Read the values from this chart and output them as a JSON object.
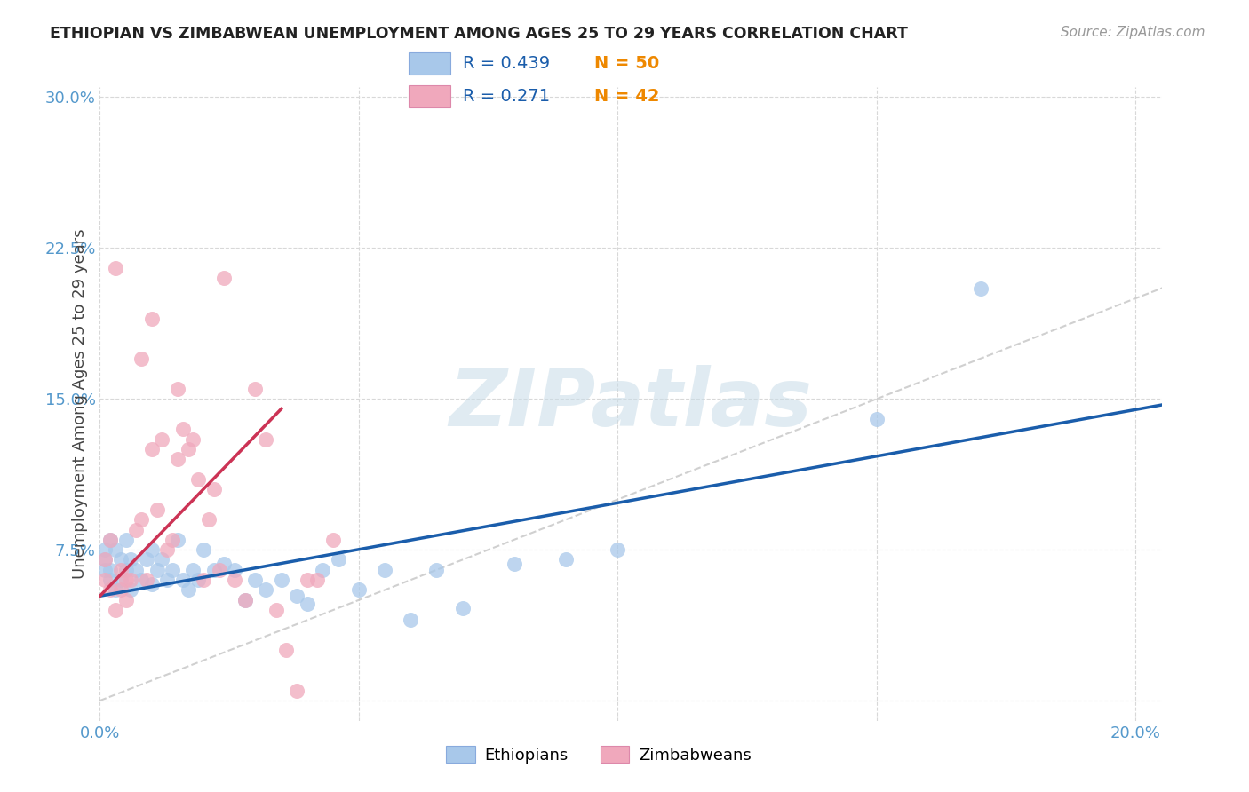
{
  "title": "ETHIOPIAN VS ZIMBABWEAN UNEMPLOYMENT AMONG AGES 25 TO 29 YEARS CORRELATION CHART",
  "source": "Source: ZipAtlas.com",
  "ylabel": "Unemployment Among Ages 25 to 29 years",
  "xlim": [
    0.0,
    0.205
  ],
  "ylim": [
    -0.01,
    0.305
  ],
  "blue_color": "#a8c8ea",
  "pink_color": "#f0a8bc",
  "blue_line_color": "#1a5dab",
  "pink_line_color": "#cc3355",
  "ref_line_color": "#c8c8c8",
  "legend_r_color": "#1a5dab",
  "legend_n_color": "#ee8800",
  "legend_blue_r": "R = 0.439",
  "legend_blue_n": "N = 50",
  "legend_pink_r": "R = 0.271",
  "legend_pink_n": "N = 42",
  "watermark": "ZIPatlas",
  "ethiopians_x": [
    0.001,
    0.001,
    0.001,
    0.002,
    0.002,
    0.002,
    0.003,
    0.003,
    0.004,
    0.004,
    0.005,
    0.005,
    0.006,
    0.006,
    0.007,
    0.008,
    0.009,
    0.01,
    0.01,
    0.011,
    0.012,
    0.013,
    0.014,
    0.015,
    0.016,
    0.017,
    0.018,
    0.019,
    0.02,
    0.022,
    0.024,
    0.026,
    0.028,
    0.03,
    0.032,
    0.035,
    0.038,
    0.04,
    0.043,
    0.046,
    0.05,
    0.055,
    0.06,
    0.065,
    0.07,
    0.08,
    0.09,
    0.1,
    0.15,
    0.17
  ],
  "ethiopians_y": [
    0.065,
    0.07,
    0.075,
    0.06,
    0.065,
    0.08,
    0.055,
    0.075,
    0.06,
    0.07,
    0.065,
    0.08,
    0.055,
    0.07,
    0.065,
    0.06,
    0.07,
    0.058,
    0.075,
    0.065,
    0.07,
    0.06,
    0.065,
    0.08,
    0.06,
    0.055,
    0.065,
    0.06,
    0.075,
    0.065,
    0.068,
    0.065,
    0.05,
    0.06,
    0.055,
    0.06,
    0.052,
    0.048,
    0.065,
    0.07,
    0.055,
    0.065,
    0.04,
    0.065,
    0.046,
    0.068,
    0.07,
    0.075,
    0.14,
    0.205
  ],
  "zimbabweans_x": [
    0.001,
    0.001,
    0.002,
    0.002,
    0.003,
    0.004,
    0.004,
    0.005,
    0.005,
    0.006,
    0.007,
    0.008,
    0.009,
    0.01,
    0.011,
    0.012,
    0.013,
    0.014,
    0.015,
    0.016,
    0.017,
    0.018,
    0.019,
    0.02,
    0.021,
    0.022,
    0.023,
    0.024,
    0.026,
    0.028,
    0.03,
    0.032,
    0.034,
    0.036,
    0.038,
    0.04,
    0.042,
    0.045,
    0.003,
    0.008,
    0.01,
    0.015
  ],
  "zimbabweans_y": [
    0.06,
    0.07,
    0.055,
    0.08,
    0.045,
    0.055,
    0.065,
    0.05,
    0.06,
    0.06,
    0.085,
    0.09,
    0.06,
    0.125,
    0.095,
    0.13,
    0.075,
    0.08,
    0.12,
    0.135,
    0.125,
    0.13,
    0.11,
    0.06,
    0.09,
    0.105,
    0.065,
    0.21,
    0.06,
    0.05,
    0.155,
    0.13,
    0.045,
    0.025,
    0.005,
    0.06,
    0.06,
    0.08,
    0.215,
    0.17,
    0.19,
    0.155
  ],
  "blue_line_x0": 0.0,
  "blue_line_y0": 0.052,
  "blue_line_x1": 0.205,
  "blue_line_y1": 0.147,
  "pink_line_x0": 0.0,
  "pink_line_y0": 0.052,
  "pink_line_x1": 0.035,
  "pink_line_y1": 0.145
}
